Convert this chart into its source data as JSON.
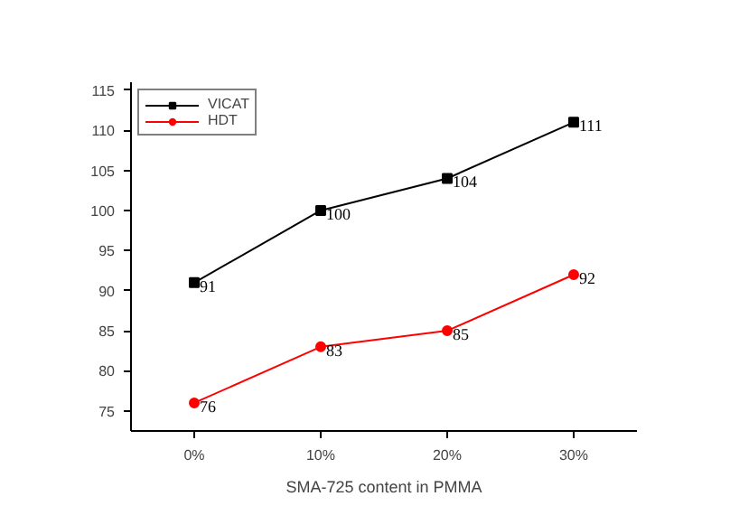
{
  "chart_data": {
    "type": "line",
    "categories": [
      "0%",
      "10%",
      "20%",
      "30%"
    ],
    "xlabel": "SMA-725 content in PMMA",
    "series": [
      {
        "name": "VICAT",
        "color": "#000000",
        "values": [
          91,
          100,
          104,
          111
        ],
        "marker": "square"
      },
      {
        "name": "HDT",
        "color": "#ff0000",
        "values": [
          76,
          83,
          85,
          92
        ],
        "marker": "circle"
      }
    ],
    "ylim": [
      72.5,
      116
    ],
    "yticks": [
      75,
      80,
      85,
      90,
      95,
      100,
      105,
      110,
      115
    ],
    "data_labels": true,
    "legend": "top left",
    "grid": false,
    "line_style": "solid"
  }
}
